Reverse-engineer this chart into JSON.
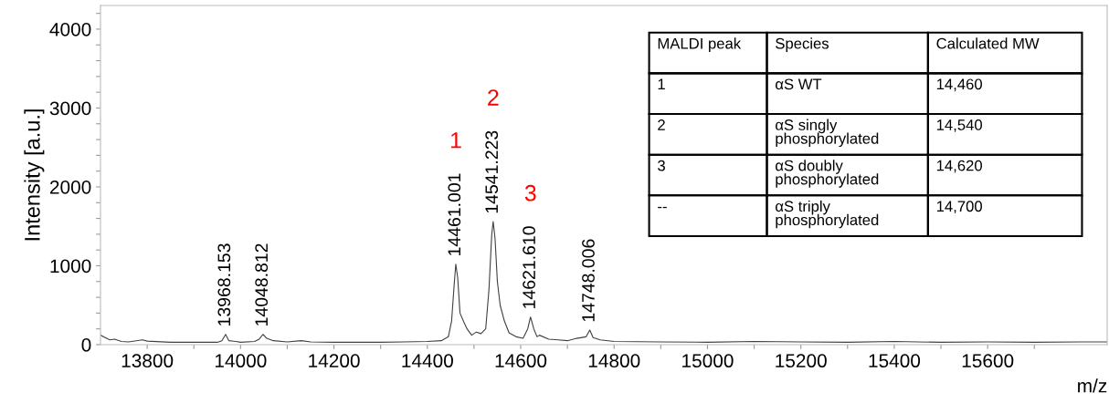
{
  "chart_data": {
    "type": "line",
    "xlabel": "m/z",
    "ylabel": "Intensity [a.u.]",
    "x": [
      13700,
      13710,
      13720,
      13730,
      13745,
      13760,
      13790,
      13800,
      13850,
      13900,
      13950,
      13960,
      13968,
      13975,
      13990,
      14000,
      14030,
      14040,
      14048,
      14056,
      14070,
      14100,
      14130,
      14150,
      14200,
      14300,
      14350,
      14400,
      14430,
      14445,
      14452,
      14458,
      14461,
      14465,
      14470,
      14478,
      14485,
      14495,
      14505,
      14515,
      14525,
      14532,
      14538,
      14541,
      14545,
      14550,
      14556,
      14565,
      14575,
      14590,
      14605,
      14615,
      14621,
      14628,
      14635,
      14640,
      14660,
      14680,
      14700,
      14720,
      14740,
      14748,
      14755,
      14770,
      14800,
      14900,
      15000,
      15100,
      15200,
      15300,
      15400,
      15500,
      15600,
      15700,
      15800,
      15856
    ],
    "series": [
      {
        "color": "#404040",
        "values": [
          120,
          90,
          60,
          70,
          40,
          35,
          60,
          45,
          30,
          30,
          30,
          50,
          130,
          50,
          40,
          30,
          40,
          70,
          130,
          80,
          50,
          35,
          50,
          35,
          30,
          30,
          35,
          40,
          50,
          100,
          300,
          800,
          1020,
          850,
          400,
          290,
          200,
          120,
          160,
          140,
          200,
          700,
          1400,
          1560,
          1350,
          800,
          500,
          300,
          150,
          100,
          80,
          200,
          350,
          200,
          100,
          120,
          70,
          60,
          50,
          80,
          100,
          185,
          90,
          60,
          40,
          35,
          30,
          40,
          35,
          30,
          40,
          30,
          35,
          30,
          35,
          35
        ]
      }
    ],
    "xlim": [
      13700,
      15856
    ],
    "xticks": [
      13800,
      {
        "value": 13900,
        "label": null
      },
      14000,
      {
        "value": 14100,
        "label": null
      },
      14200,
      {
        "value": 14300,
        "label": null
      },
      14400,
      {
        "value": 14500,
        "label": null
      },
      14600,
      {
        "value": 14700,
        "label": null
      },
      14800,
      {
        "value": 14900,
        "label": null
      },
      15000,
      {
        "value": 15100,
        "label": null
      },
      15200,
      {
        "value": 15300,
        "label": null
      },
      15400,
      {
        "value": 15500,
        "label": null
      },
      15600,
      {
        "value": 15700,
        "label": null
      }
    ],
    "ylim": [
      0,
      4300
    ],
    "yticks": [
      0,
      {
        "value": 200,
        "label": null
      },
      {
        "value": 400,
        "label": null
      },
      {
        "value": 600,
        "label": null
      },
      {
        "value": 800,
        "label": null
      },
      1000,
      {
        "value": 1200,
        "label": null
      },
      {
        "value": 1400,
        "label": null
      },
      {
        "value": 1600,
        "label": null
      },
      {
        "value": 1800,
        "label": null
      },
      2000,
      {
        "value": 2200,
        "label": null
      },
      {
        "value": 2400,
        "label": null
      },
      {
        "value": 2600,
        "label": null
      },
      {
        "value": 2800,
        "label": null
      },
      3000,
      {
        "value": 3200,
        "label": null
      },
      {
        "value": 3400,
        "label": null
      },
      {
        "value": 3600,
        "label": null
      },
      {
        "value": 3800,
        "label": null
      },
      4000,
      {
        "value": 4200,
        "label": null
      }
    ],
    "grid": false,
    "legend": false,
    "marker": "none",
    "line_style": "solid",
    "annotations": [
      {
        "text": "13968.153",
        "x": 13968,
        "y": 130
      },
      {
        "text": "14048.812",
        "x": 14048,
        "y": 130
      },
      {
        "text": "14461.001",
        "x": 14461,
        "y": 1020
      },
      {
        "text": "14541.223",
        "x": 14541,
        "y": 1560
      },
      {
        "text": "14621.610",
        "x": 14621,
        "y": 350
      },
      {
        "text": "14748.006",
        "x": 14748,
        "y": 185
      },
      "1",
      "2",
      "3",
      "MALDI peak",
      "Species",
      "Calculated MW",
      "1",
      "αS WT",
      "14,460",
      "2",
      "αS singly\nphosphorylated",
      "14,540",
      "3",
      "αS doubly\nphosphorylated",
      "14,620",
      "--",
      "αS triply\nphosphorylated",
      "14,700"
    ]
  }
}
